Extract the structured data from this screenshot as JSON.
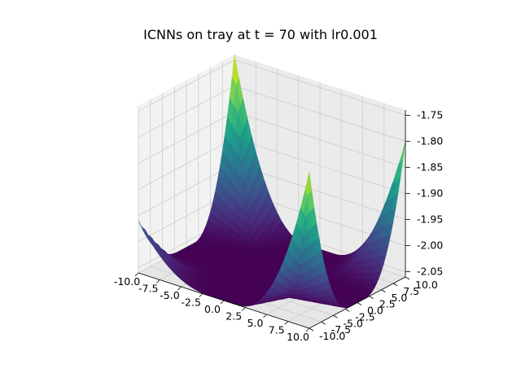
{
  "chart_data": {
    "type": "surface3d",
    "title": "ICNNs on tray at t = 70 with lr0.001",
    "xlabel": "",
    "ylabel": "",
    "zlabel": "",
    "xlim": [
      -10.0,
      10.0
    ],
    "ylim": [
      -10.0,
      10.0
    ],
    "zlim": [
      -2.06,
      -1.74
    ],
    "x_ticks": [
      "-10.0",
      "-7.5",
      "-5.0",
      "-2.5",
      "0.0",
      "2.5",
      "5.0",
      "7.5",
      "10.0"
    ],
    "y_ticks": [
      "-10.0",
      "-7.5",
      "-5.0",
      "-2.5",
      "0.0",
      "2.5",
      "5.0",
      "7.5",
      "10.0"
    ],
    "z_ticks": [
      "-2.05",
      "-2.00",
      "-1.95",
      "-1.90",
      "-1.85",
      "-1.80",
      "-1.75"
    ],
    "colormap": "viridis",
    "grid": true,
    "surface_description": "flat floor near z=-2.06 rising sharply to peaks at the four corners",
    "corner_peaks": [
      {
        "x": -10.0,
        "y": -10.0,
        "z": -1.96
      },
      {
        "x": -10.0,
        "y": 10.0,
        "z": -1.74
      },
      {
        "x": 10.0,
        "y": 10.0,
        "z": -1.8
      },
      {
        "x": 10.0,
        "y": -10.0,
        "z": -1.76
      }
    ],
    "floor_z": -2.06
  }
}
